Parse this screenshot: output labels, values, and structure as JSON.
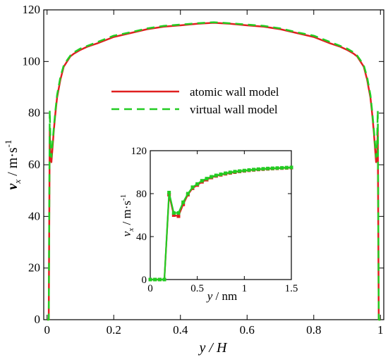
{
  "chart_data": [
    {
      "type": "line",
      "xlabel": "y / H",
      "ylabel": "v_x / m·s^-1",
      "xlim": [
        -0.01,
        1.01
      ],
      "ylim": [
        0,
        120
      ],
      "x_ticks": [
        "0",
        "0.2",
        "0.4",
        "0.6",
        "0.8",
        "1"
      ],
      "y_ticks": [
        "0",
        "20",
        "40",
        "60",
        "80",
        "100",
        "120"
      ],
      "grid": false,
      "legend": "top-center",
      "series": [
        {
          "name": "atomic wall model",
          "color": "#e02020",
          "dash": "solid",
          "x": [
            0.0,
            0.005,
            0.008,
            0.011,
            0.013,
            0.016,
            0.02,
            0.025,
            0.03,
            0.04,
            0.05,
            0.06,
            0.07,
            0.08,
            0.1,
            0.12,
            0.15,
            0.2,
            0.25,
            0.3,
            0.35,
            0.4,
            0.45,
            0.5,
            0.55,
            0.6,
            0.65,
            0.7,
            0.75,
            0.8,
            0.85,
            0.88,
            0.9,
            0.92,
            0.93,
            0.94,
            0.95,
            0.96,
            0.97,
            0.975,
            0.98,
            0.984,
            0.987,
            0.989,
            0.992,
            0.995,
            1.0
          ],
          "y": [
            0,
            0,
            73,
            62,
            61,
            66,
            73,
            80,
            86,
            93,
            98,
            100,
            102,
            103,
            104.5,
            105.7,
            107,
            109.5,
            111,
            112.5,
            113.5,
            114,
            114.6,
            115,
            114.6,
            114,
            113.5,
            112.5,
            111,
            109.5,
            107,
            105.7,
            104.5,
            103,
            102,
            100,
            98,
            93,
            86,
            80,
            73,
            66,
            61,
            62,
            73,
            0,
            0
          ]
        },
        {
          "name": "virtual wall model",
          "color": "#22cc22",
          "dash": "dashed",
          "x": [
            0.0,
            0.005,
            0.008,
            0.011,
            0.013,
            0.016,
            0.02,
            0.025,
            0.03,
            0.04,
            0.05,
            0.06,
            0.07,
            0.08,
            0.1,
            0.12,
            0.15,
            0.2,
            0.25,
            0.3,
            0.35,
            0.4,
            0.45,
            0.5,
            0.55,
            0.6,
            0.65,
            0.7,
            0.75,
            0.8,
            0.85,
            0.88,
            0.9,
            0.92,
            0.93,
            0.94,
            0.95,
            0.96,
            0.97,
            0.975,
            0.98,
            0.984,
            0.987,
            0.989,
            0.992,
            0.995,
            1.0
          ],
          "y": [
            0,
            0,
            81,
            64,
            63,
            68,
            74,
            81,
            87,
            94,
            98.5,
            100.5,
            102.3,
            103.5,
            105,
            106,
            107.5,
            110,
            111.3,
            112.8,
            113.8,
            114.3,
            114.8,
            115.2,
            114.8,
            114.3,
            113.8,
            112.8,
            111.3,
            110,
            107.5,
            106,
            105,
            103.5,
            102.3,
            100.5,
            98.5,
            94,
            87,
            81,
            74,
            68,
            63,
            64,
            81,
            0,
            0
          ]
        }
      ]
    },
    {
      "type": "line",
      "xlabel": "y / nm",
      "ylabel": "v_x / m·s^-1",
      "xlim": [
        0,
        1.5
      ],
      "ylim": [
        0,
        120
      ],
      "x_ticks": [
        "0",
        "0.5",
        "1",
        "1.5"
      ],
      "y_ticks": [
        "0",
        "40",
        "80",
        "120"
      ],
      "grid": false,
      "series": [
        {
          "name": "atomic wall model",
          "color": "#e02020",
          "marker": "square",
          "x": [
            0.0,
            0.05,
            0.1,
            0.15,
            0.2,
            0.25,
            0.3,
            0.35,
            0.4,
            0.45,
            0.5,
            0.55,
            0.6,
            0.65,
            0.7,
            0.75,
            0.8,
            0.85,
            0.9,
            0.95,
            1.0,
            1.05,
            1.1,
            1.15,
            1.2,
            1.25,
            1.3,
            1.35,
            1.4,
            1.45,
            1.5
          ],
          "y": [
            0,
            0,
            0,
            0,
            79,
            60,
            59,
            70,
            79,
            85,
            88,
            91,
            93,
            95,
            96.5,
            97.5,
            98.5,
            99.3,
            100,
            100.7,
            101.2,
            101.7,
            102.1,
            102.5,
            102.8,
            103.1,
            103.4,
            103.6,
            103.8,
            104,
            104.2
          ]
        },
        {
          "name": "virtual wall model",
          "color": "#22cc22",
          "marker": "square",
          "x": [
            0.0,
            0.05,
            0.1,
            0.15,
            0.2,
            0.25,
            0.3,
            0.35,
            0.4,
            0.45,
            0.5,
            0.55,
            0.6,
            0.65,
            0.7,
            0.75,
            0.8,
            0.85,
            0.9,
            0.95,
            1.0,
            1.05,
            1.1,
            1.15,
            1.2,
            1.25,
            1.3,
            1.35,
            1.4,
            1.45,
            1.5
          ],
          "y": [
            0,
            0,
            0,
            0,
            81,
            62,
            62,
            72,
            80,
            86,
            89,
            92,
            94,
            95.7,
            97,
            98,
            99,
            99.8,
            100.5,
            101,
            101.5,
            102,
            102.4,
            102.8,
            103.1,
            103.4,
            103.6,
            103.8,
            104,
            104.2,
            104.4
          ]
        }
      ]
    }
  ]
}
